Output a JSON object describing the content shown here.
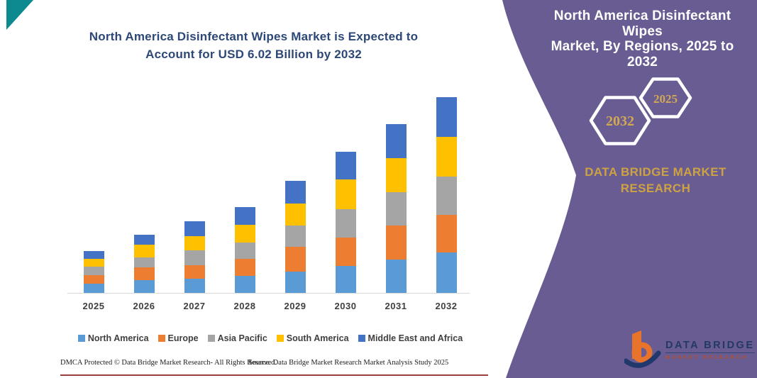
{
  "left": {
    "title_lines": [
      "North America Disinfectant Wipes Market is Expected to",
      "Account for USD 6.02 Billion by 2032"
    ],
    "title_color": "#2d4876"
  },
  "chart_data": {
    "type": "bar",
    "stacked": true,
    "title": "North America Disinfectant Wipes Market is Expected to Account for USD 6.02 Billion by 2032",
    "unit": "USD Billion (estimated from bar heights; 2032 total = 6.02 per title)",
    "categories": [
      "2025",
      "2026",
      "2027",
      "2028",
      "2029",
      "2030",
      "2031",
      "2032"
    ],
    "series": [
      {
        "name": "North America",
        "color": "#5B9BD5",
        "values": [
          0.29,
          0.4,
          0.44,
          0.53,
          0.66,
          0.83,
          1.03,
          1.25
        ]
      },
      {
        "name": "Europe",
        "color": "#ED7D31",
        "values": [
          0.26,
          0.39,
          0.42,
          0.51,
          0.75,
          0.88,
          1.05,
          1.14
        ]
      },
      {
        "name": "Asia Pacific",
        "color": "#A5A5A5",
        "values": [
          0.26,
          0.31,
          0.44,
          0.51,
          0.66,
          0.86,
          1.03,
          1.18
        ]
      },
      {
        "name": "South America",
        "color": "#FFC000",
        "values": [
          0.24,
          0.39,
          0.44,
          0.55,
          0.68,
          0.92,
          1.03,
          1.23
        ]
      },
      {
        "name": "Middle East and Africa",
        "color": "#4472C4",
        "values": [
          0.24,
          0.31,
          0.46,
          0.53,
          0.7,
          0.86,
          1.05,
          1.22
        ]
      }
    ],
    "totals": [
      1.29,
      1.8,
      2.2,
      2.63,
      3.45,
      4.35,
      5.19,
      6.02
    ],
    "ylim": [
      0,
      6.02
    ],
    "y_axis_hidden": true,
    "gridlines": false,
    "legend_position": "bottom"
  },
  "panel": {
    "background": "#695c92",
    "title_lines": [
      "North America Disinfectant Wipes",
      "Market, By Regions, 2025 to 2032"
    ],
    "hexagons": [
      {
        "label": "2032"
      },
      {
        "label": "2025"
      }
    ],
    "hexagon_label_color": "#d2a855",
    "brand_lines": [
      "DATA BRIDGE MARKET",
      "RESEARCH"
    ],
    "brand_color": "#cda243"
  },
  "logo": {
    "line1": "DATA BRIDGE",
    "line2": "MARKET RESEARCH"
  },
  "footer": {
    "dmca": "DMCA Protected © Data Bridge Market Research-  All Rights Reserved.",
    "source": "Source: Data Bridge Market Research  Market Analysis Study 2025",
    "rule_color": "#8a1a1a"
  },
  "decor": {
    "corner_triangle_color": "#0d8a90"
  }
}
